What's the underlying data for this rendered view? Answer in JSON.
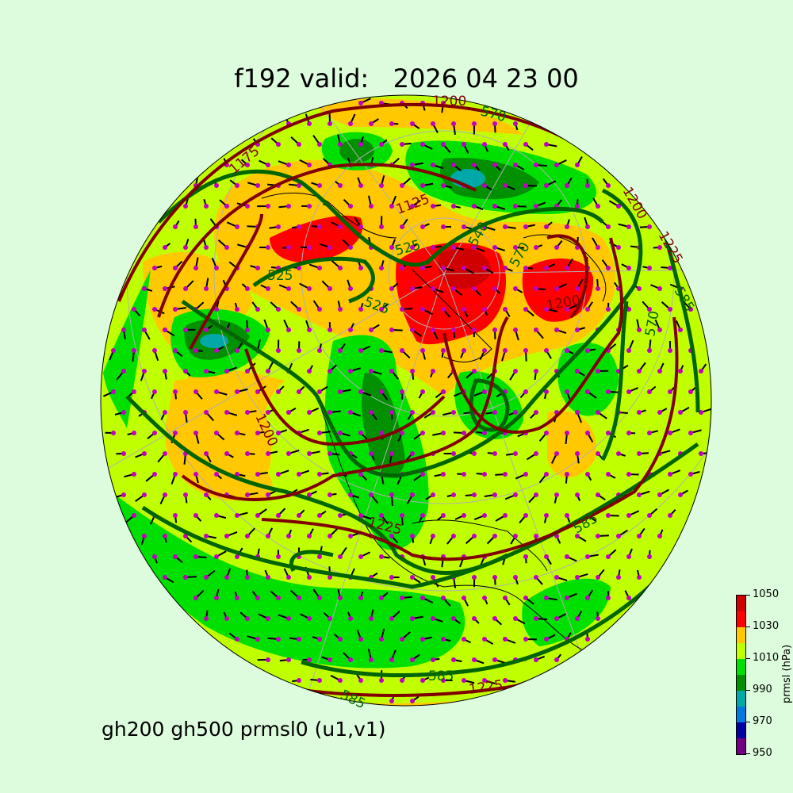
{
  "title": "f192 valid:   2026 04 23 00",
  "subtitle": "gh200 gh500 prmsl0 (u1,v1)",
  "colorbar": {
    "label": "prmsl (hPa)",
    "ticks": [
      "950",
      "970",
      "990",
      "1010",
      "1030",
      "1050"
    ],
    "levels": [
      950,
      960,
      970,
      980,
      990,
      1000,
      1010,
      1020,
      1030,
      1040,
      1050
    ],
    "colors": [
      "#700080",
      "#0000a0",
      "#0078e0",
      "#00a8a8",
      "#009000",
      "#00e000",
      "#c0ff00",
      "#ffc800",
      "#ff0000",
      "#d00000"
    ]
  },
  "contour_colors": {
    "gh500": "#006400",
    "gh200": "#800000",
    "wind_points": "#c000c0"
  },
  "contour_labels": {
    "gh200": [
      "1200",
      "1175",
      "1125",
      "1200",
      "1200",
      "1225",
      "1200",
      "1225",
      "1225"
    ],
    "gh500": [
      "570",
      "525",
      "525",
      "525",
      "540",
      "570",
      "585",
      "570",
      "585",
      "585",
      "585"
    ]
  }
}
